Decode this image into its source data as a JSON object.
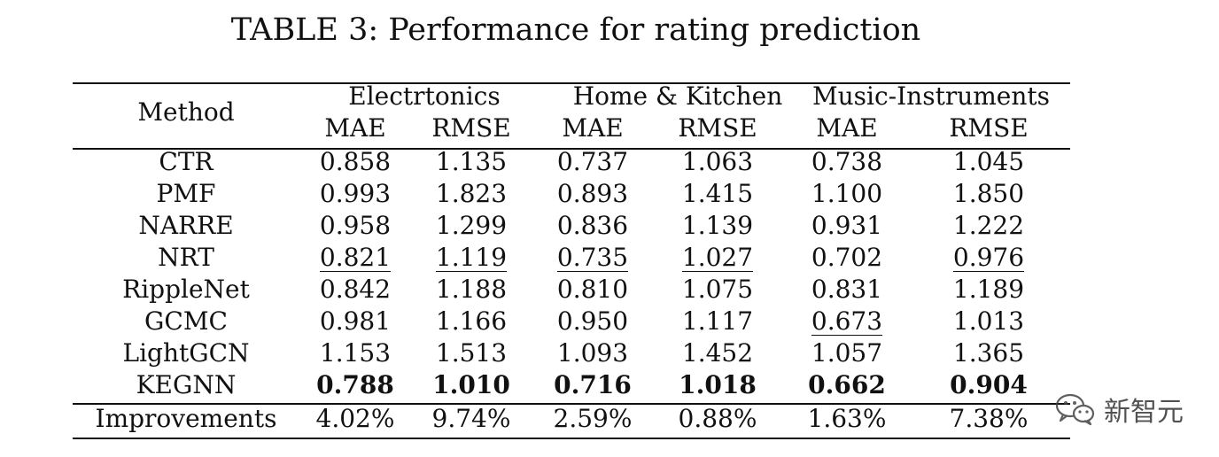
{
  "caption": "TABLE 3: Performance for rating prediction",
  "header": {
    "method": "Method",
    "groups": [
      "Electrtonics",
      "Home & Kitchen",
      "Music-Instruments"
    ],
    "metrics": [
      "MAE",
      "RMSE",
      "MAE",
      "RMSE",
      "MAE",
      "RMSE"
    ]
  },
  "rows": [
    {
      "method": "CTR",
      "values": [
        "0.858",
        "1.135",
        "0.737",
        "1.063",
        "0.738",
        "1.045"
      ],
      "underline": [],
      "bold": []
    },
    {
      "method": "PMF",
      "values": [
        "0.993",
        "1.823",
        "0.893",
        "1.415",
        "1.100",
        "1.850"
      ],
      "underline": [],
      "bold": []
    },
    {
      "method": "NARRE",
      "values": [
        "0.958",
        "1.299",
        "0.836",
        "1.139",
        "0.931",
        "1.222"
      ],
      "underline": [],
      "bold": []
    },
    {
      "method": "NRT",
      "values": [
        "0.821",
        "1.119",
        "0.735",
        "1.027",
        "0.702",
        "0.976"
      ],
      "underline": [
        0,
        1,
        2,
        3,
        5
      ],
      "bold": []
    },
    {
      "method": "RippleNet",
      "values": [
        "0.842",
        "1.188",
        "0.810",
        "1.075",
        "0.831",
        "1.189"
      ],
      "underline": [],
      "bold": []
    },
    {
      "method": "GCMC",
      "values": [
        "0.981",
        "1.166",
        "0.950",
        "1.117",
        "0.673",
        "1.013"
      ],
      "underline": [
        4
      ],
      "bold": []
    },
    {
      "method": "LightGCN",
      "values": [
        "1.153",
        "1.513",
        "1.093",
        "1.452",
        "1.057",
        "1.365"
      ],
      "underline": [],
      "bold": []
    },
    {
      "method": "KEGNN",
      "values": [
        "0.788",
        "1.010",
        "0.716",
        "1.018",
        "0.662",
        "0.904"
      ],
      "underline": [],
      "bold": [
        0,
        1,
        2,
        3,
        4,
        5
      ]
    }
  ],
  "improvements": {
    "label": "Improvements",
    "values": [
      "4.02%",
      "9.74%",
      "2.59%",
      "0.88%",
      "1.63%",
      "7.38%"
    ]
  },
  "watermark": {
    "text": "新智元",
    "icon": "wechat-icon"
  }
}
